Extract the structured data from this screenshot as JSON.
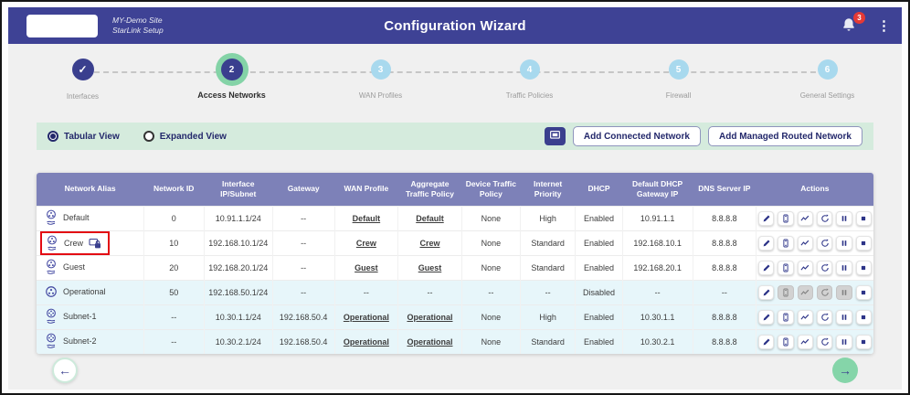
{
  "header": {
    "site_name": "MY-Demo Site",
    "site_subtitle": "StarLink Setup",
    "title": "Configuration Wizard",
    "notification_count": "3"
  },
  "stepper": {
    "steps": [
      {
        "number": "1",
        "label": "Interfaces",
        "state": "completed"
      },
      {
        "number": "2",
        "label": "Access Networks",
        "state": "active"
      },
      {
        "number": "3",
        "label": "WAN Profiles",
        "state": "upcoming"
      },
      {
        "number": "4",
        "label": "Traffic Policies",
        "state": "upcoming"
      },
      {
        "number": "5",
        "label": "Firewall",
        "state": "upcoming"
      },
      {
        "number": "6",
        "label": "General Settings",
        "state": "upcoming"
      }
    ]
  },
  "toolbar": {
    "view_options": [
      {
        "label": "Tabular View",
        "selected": true
      },
      {
        "label": "Expanded View",
        "selected": false
      }
    ],
    "display_icon": "monitor-icon",
    "add_connected_label": "Add Connected Network",
    "add_managed_label": "Add Managed Routed Network"
  },
  "table": {
    "columns": [
      "Network Alias",
      "Network ID",
      "Interface IP/Subnet",
      "Gateway",
      "WAN Profile",
      "Aggregate Traffic Policy",
      "Device Traffic Policy",
      "Internet Priority",
      "DHCP",
      "Default DHCP Gateway IP",
      "DNS Server IP",
      "Actions"
    ],
    "actions": [
      {
        "name": "edit",
        "icon": "pencil-icon"
      },
      {
        "name": "devices",
        "icon": "device-icon"
      },
      {
        "name": "usage",
        "icon": "usage-graph-icon"
      },
      {
        "name": "restart",
        "icon": "restart-icon"
      },
      {
        "name": "pause",
        "icon": "pause-icon"
      },
      {
        "name": "stop",
        "icon": "stop-icon"
      }
    ],
    "rows": [
      {
        "alias": "Default",
        "icon": "network-share-icon",
        "locked": false,
        "highlighted": false,
        "tinted": false,
        "network_id": "0",
        "ip_subnet": "10.91.1.1/24",
        "gateway": "--",
        "wan_profile": "Default",
        "aggregate_policy": "Default",
        "device_policy": "None",
        "priority": "High",
        "dhcp": "Enabled",
        "dhcp_gateway": "10.91.1.1",
        "dns": "8.8.8.8",
        "disabled_actions": []
      },
      {
        "alias": "Crew",
        "icon": "network-share-icon",
        "locked": true,
        "highlighted": true,
        "tinted": false,
        "network_id": "10",
        "ip_subnet": "192.168.10.1/24",
        "gateway": "--",
        "wan_profile": "Crew",
        "aggregate_policy": "Crew",
        "device_policy": "None",
        "priority": "Standard",
        "dhcp": "Enabled",
        "dhcp_gateway": "192.168.10.1",
        "dns": "8.8.8.8",
        "disabled_actions": []
      },
      {
        "alias": "Guest",
        "icon": "network-share-icon",
        "locked": false,
        "highlighted": false,
        "tinted": false,
        "network_id": "20",
        "ip_subnet": "192.168.20.1/24",
        "gateway": "--",
        "wan_profile": "Guest",
        "aggregate_policy": "Guest",
        "device_policy": "None",
        "priority": "Standard",
        "dhcp": "Enabled",
        "dhcp_gateway": "192.168.20.1",
        "dns": "8.8.8.8",
        "disabled_actions": []
      },
      {
        "alias": "Operational",
        "icon": "operational-network-icon",
        "locked": false,
        "highlighted": false,
        "tinted": true,
        "network_id": "50",
        "ip_subnet": "192.168.50.1/24",
        "gateway": "--",
        "wan_profile": "--",
        "aggregate_policy": "--",
        "device_policy": "--",
        "priority": "--",
        "dhcp": "Disabled",
        "dhcp_gateway": "--",
        "dns": "--",
        "disabled_actions": [
          "devices",
          "usage",
          "restart",
          "pause"
        ]
      },
      {
        "alias": "Subnet-1",
        "icon": "subnet-icon",
        "locked": false,
        "highlighted": false,
        "tinted": true,
        "network_id": "--",
        "ip_subnet": "10.30.1.1/24",
        "gateway": "192.168.50.4",
        "wan_profile": "Operational",
        "aggregate_policy": "Operational",
        "device_policy": "None",
        "priority": "High",
        "dhcp": "Enabled",
        "dhcp_gateway": "10.30.1.1",
        "dns": "8.8.8.8",
        "disabled_actions": []
      },
      {
        "alias": "Subnet-2",
        "icon": "subnet-icon",
        "locked": false,
        "highlighted": false,
        "tinted": true,
        "network_id": "--",
        "ip_subnet": "10.30.2.1/24",
        "gateway": "192.168.50.4",
        "wan_profile": "Operational",
        "aggregate_policy": "Operational",
        "device_policy": "None",
        "priority": "Standard",
        "dhcp": "Enabled",
        "dhcp_gateway": "10.30.2.1",
        "dns": "8.8.8.8",
        "disabled_actions": []
      }
    ]
  },
  "footer": {
    "back_icon": "left-arrow-icon",
    "next_icon": "right-arrow-icon"
  },
  "colors": {
    "header_bg": "#3e4295",
    "step_navy": "#3a3f8e",
    "step_active_ring": "#84d3a7",
    "step_upcoming": "#a8d9ee",
    "toolbar_mint": "#d5ebdd",
    "table_header": "#7d81b8",
    "row_tint": "#e7f6fa",
    "highlight_red": "#e30b13",
    "badge_red": "#e53935",
    "next_green": "#85d5a9"
  }
}
